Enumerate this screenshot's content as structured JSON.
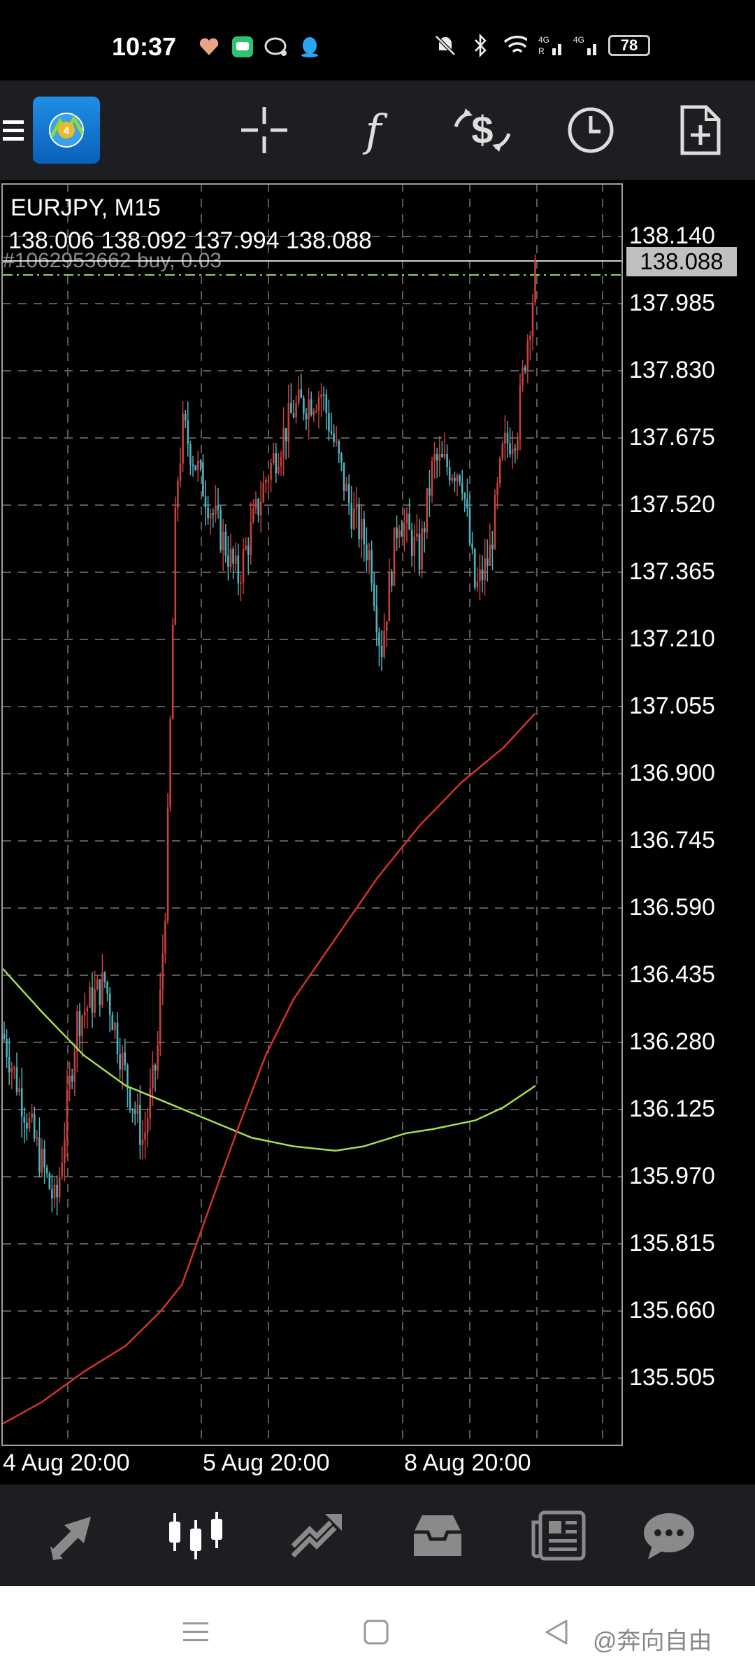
{
  "status_bar": {
    "time": "10:37",
    "battery": "78",
    "icons_left": [
      "heart-app-icon",
      "chat-app-icon",
      "message-app-icon",
      "qq-app-icon"
    ],
    "icons_right": [
      "mute-icon",
      "bluetooth-icon",
      "wifi-icon",
      "signal-4g-r-icon",
      "signal-4g-icon"
    ]
  },
  "toolbar": {
    "menu_icon": "hamburger-icon",
    "items": [
      "crosshair-icon",
      "indicators-icon",
      "symbol-change-icon",
      "timeframe-icon",
      "new-order-icon"
    ],
    "indicator_glyph": "f"
  },
  "chart": {
    "symbol": "EURJPY, M15",
    "ohlc": "138.006 138.092 137.994 138.088",
    "order_label": "#1062953662 buy, 0.03",
    "current_price": "138.088",
    "price_ticks": [
      "138.140",
      "137.985",
      "137.830",
      "137.675",
      "137.520",
      "137.365",
      "137.210",
      "137.055",
      "136.900",
      "136.745",
      "136.590",
      "136.435",
      "136.280",
      "136.125",
      "135.970",
      "135.815",
      "135.660",
      "135.505"
    ],
    "date_ticks": [
      "4 Aug 20:00",
      "5 Aug 20:00",
      "8 Aug 20:00"
    ],
    "colors": {
      "bull": "#c8413b",
      "bear": "#4fb3bf",
      "ma_fast": "#a5e04a",
      "ma_slow": "#d0342c",
      "order_line": "#9ad24a"
    }
  },
  "bottom_nav": {
    "items": [
      "quotes-icon",
      "chart-icon",
      "trade-icon",
      "history-icon",
      "news-icon",
      "messages-icon"
    ],
    "active": "chart-icon"
  },
  "system_nav": {
    "items": [
      "menu-icon",
      "home-icon",
      "back-icon"
    ],
    "watermark": "@奔向自由"
  }
}
